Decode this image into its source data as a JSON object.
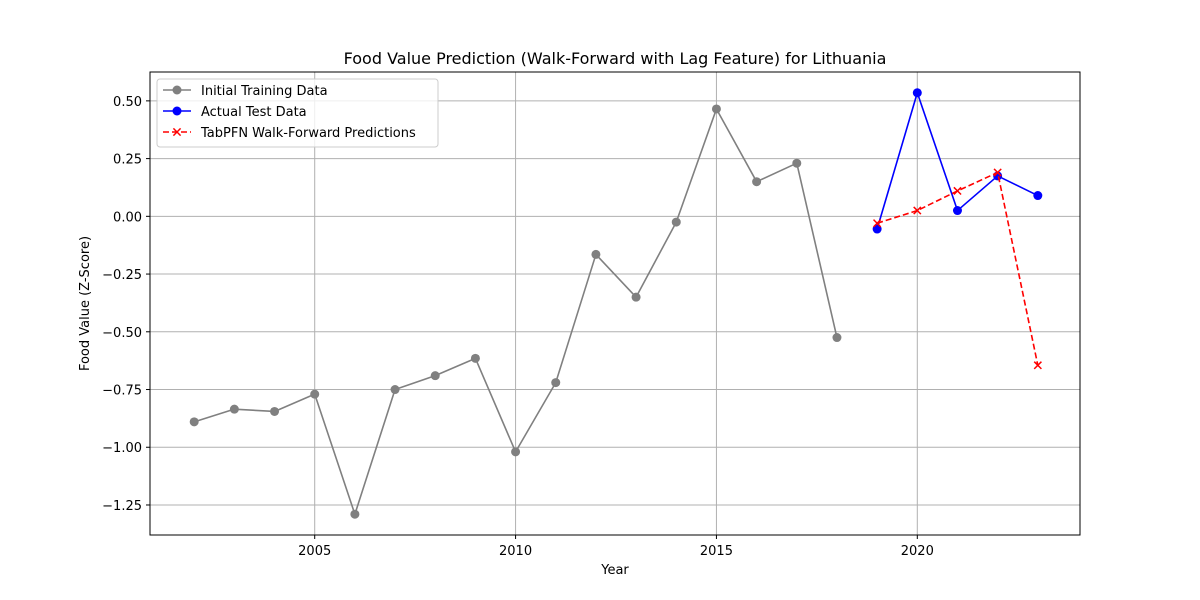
{
  "chart_data": {
    "type": "line",
    "title": "Food Value Prediction (Walk-Forward with Lag Feature) for Lithuania",
    "xlabel": "Year",
    "ylabel": "Food Value (Z-Score)",
    "xlim": [
      2000.9,
      2024.05
    ],
    "ylim": [
      -1.38,
      0.625
    ],
    "xticks": [
      2005,
      2010,
      2015,
      2020
    ],
    "yticks": [
      -1.25,
      -1.0,
      -0.75,
      -0.5,
      -0.25,
      0.0,
      0.25,
      0.5
    ],
    "ytick_labels": [
      "−1.25",
      "−1.00",
      "−0.75",
      "−0.50",
      "−0.25",
      "0.00",
      "0.25",
      "0.50"
    ],
    "grid": true,
    "legend_position": "top-left",
    "series": [
      {
        "name": "Initial Training Data",
        "color": "#808080",
        "marker": "circle",
        "line_style": "solid",
        "x": [
          2002,
          2003,
          2004,
          2005,
          2006,
          2007,
          2008,
          2009,
          2010,
          2011,
          2012,
          2013,
          2014,
          2015,
          2016,
          2017,
          2018
        ],
        "y": [
          -0.89,
          -0.835,
          -0.845,
          -0.77,
          -1.29,
          -0.75,
          -0.69,
          -0.615,
          -1.02,
          -0.72,
          -0.165,
          -0.35,
          -0.025,
          0.465,
          0.15,
          0.23,
          -0.525
        ]
      },
      {
        "name": "Actual Test Data",
        "color": "#0000ff",
        "marker": "circle",
        "line_style": "solid",
        "x": [
          2019,
          2020,
          2021,
          2022,
          2023
        ],
        "y": [
          -0.055,
          0.535,
          0.025,
          0.175,
          0.09
        ]
      },
      {
        "name": "TabPFN Walk-Forward Predictions",
        "color": "#ff0000",
        "marker": "x",
        "line_style": "dashed",
        "x": [
          2019,
          2020,
          2021,
          2022,
          2023
        ],
        "y": [
          -0.03,
          0.025,
          0.11,
          0.19,
          -0.645
        ]
      }
    ]
  }
}
